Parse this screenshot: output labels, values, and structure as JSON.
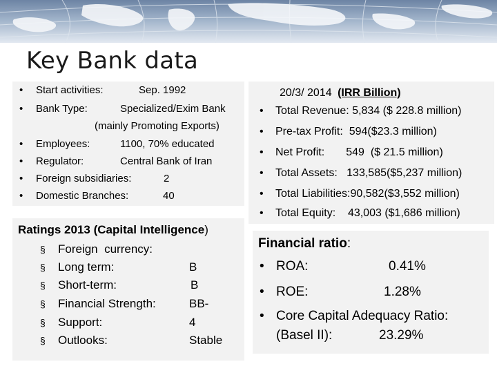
{
  "slide": {
    "title": "Key Bank data"
  },
  "bank_info": {
    "items": [
      {
        "label": "Start activities:",
        "value": "Sep. 1992"
      },
      {
        "label": "Bank Type:",
        "value": "Specialized/Exim Bank",
        "value_line2": "(mainly Promoting Exports)"
      },
      {
        "label": "Employees:",
        "value": "1100, 70%  educated"
      },
      {
        "label": "Regulator:",
        "value": "Central Bank of Iran"
      },
      {
        "label": "Foreign subsidiaries:",
        "value": "2"
      },
      {
        "label": "Domestic Branches:",
        "value": "40"
      }
    ]
  },
  "financials": {
    "header_date": "20/3/ 2014",
    "header_unit": "(IRR Billion)",
    "items": [
      "Total Revenue: 5,834 ($ 228.8 million)",
      "Pre-tax Profit:  594($23.3 million)",
      "Net Profit:       549  ($ 21.5 million)",
      "Total Assets:   133,585($5,237 million)",
      "Total Liabilities:90,582($3,552 million)",
      "Total Equity:    43,003 ($1,686 million)"
    ]
  },
  "ratings": {
    "title_prefix": "Ratings 2013 (",
    "title_agency": "Capital Intelligence",
    "title_suffix": ")",
    "items": [
      {
        "label": "Foreign  currency:",
        "value": ""
      },
      {
        "label": "Long term:",
        "value": "B"
      },
      {
        "label": "Short-term:",
        "value": "B"
      },
      {
        "label": "Financial Strength:",
        "value": "BB-"
      },
      {
        "label": "Support:",
        "value": "4"
      },
      {
        "label": "Outlooks:",
        "value": "Stable"
      }
    ]
  },
  "ratios": {
    "title_word": "Financial ratio",
    "title_colon": ":",
    "items": [
      {
        "label": "ROA:",
        "value": "0.41%"
      },
      {
        "label": "ROE:",
        "value": "1.28%"
      },
      {
        "label": "Core Capital Adequacy Ratio:",
        "value": ""
      }
    ],
    "basel_label": "(Basel II):",
    "basel_value": "23.29%"
  },
  "symbols": {
    "round_bullet": "•",
    "square_bullet": "§"
  }
}
